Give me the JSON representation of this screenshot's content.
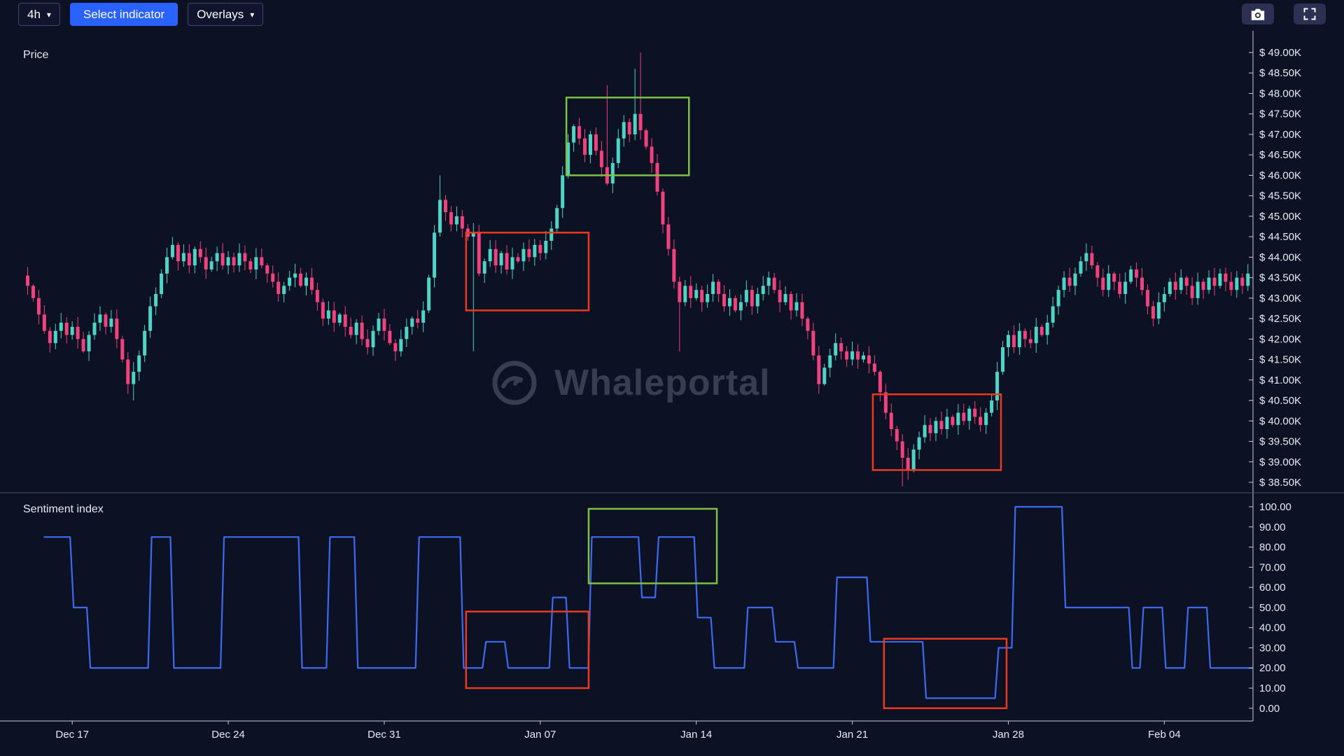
{
  "toolbar": {
    "timeframe_label": "4h",
    "select_indicator_label": "Select indicator",
    "overlays_label": "Overlays",
    "caret": "▾",
    "icons": [
      "camera-icon",
      "fullscreen-expand-icon"
    ]
  },
  "price_panel": {
    "title": "Price"
  },
  "sentiment_panel": {
    "title": "Sentiment index"
  },
  "watermark": {
    "label": "Whaleportal"
  },
  "colors": {
    "background": "#0D1124",
    "accent_blue": "#2962FF",
    "axis_text": "#E9EBF2",
    "annotation": {
      "green": "#7DC242",
      "red": "#EA3B1F"
    }
  },
  "chart_data": [
    {
      "type": "candlestick",
      "title": "Price",
      "unit": "USD (thousands)",
      "x_labels": [
        "Dec 17",
        "Dec 24",
        "Dec 31",
        "Jan 07",
        "Jan 14",
        "Jan 21",
        "Jan 28",
        "Feb 04"
      ],
      "x_label_candle_indices": [
        8,
        36,
        64,
        92,
        120,
        148,
        176,
        204
      ],
      "y_ticks": [
        "$ 49.00K",
        "$ 48.50K",
        "$ 48.00K",
        "$ 47.50K",
        "$ 47.00K",
        "$ 46.50K",
        "$ 46.00K",
        "$ 45.50K",
        "$ 45.00K",
        "$ 44.50K",
        "$ 44.00K",
        "$ 43.50K",
        "$ 43.00K",
        "$ 42.50K",
        "$ 42.00K",
        "$ 41.50K",
        "$ 41.00K",
        "$ 40.50K",
        "$ 40.00K",
        "$ 39.50K",
        "$ 39.00K",
        "$ 38.50K"
      ],
      "y_top": 49.0,
      "y_step": 0.5,
      "colors": {
        "up": "#4ED3C6",
        "down": "#F0427C"
      },
      "closes": [
        43.3,
        43.0,
        42.6,
        42.2,
        41.9,
        42.2,
        42.4,
        42.1,
        42.3,
        42.0,
        41.7,
        42.1,
        42.4,
        42.6,
        42.3,
        42.5,
        42.0,
        41.5,
        40.9,
        41.2,
        41.6,
        42.2,
        42.8,
        43.1,
        43.6,
        44.0,
        44.3,
        43.9,
        44.1,
        43.8,
        44.2,
        44.0,
        43.7,
        43.9,
        44.1,
        43.8,
        44.0,
        43.8,
        44.1,
        43.9,
        43.7,
        44.0,
        43.8,
        43.6,
        43.4,
        43.1,
        43.3,
        43.5,
        43.6,
        43.3,
        43.5,
        43.2,
        42.9,
        42.5,
        42.7,
        42.4,
        42.6,
        42.3,
        42.1,
        42.4,
        42.0,
        41.8,
        42.2,
        42.5,
        42.2,
        41.9,
        41.7,
        42.0,
        42.3,
        42.5,
        42.4,
        42.7,
        43.5,
        44.6,
        45.4,
        45.1,
        44.8,
        45.0,
        44.7,
        44.5,
        44.6,
        43.6,
        43.9,
        44.2,
        43.8,
        44.1,
        43.7,
        44.0,
        43.9,
        44.2,
        44.0,
        44.3,
        44.1,
        44.4,
        44.7,
        45.2,
        46.0,
        46.8,
        47.2,
        46.9,
        46.5,
        47.0,
        46.6,
        46.2,
        45.8,
        46.3,
        46.9,
        47.3,
        47.0,
        47.5,
        47.1,
        46.7,
        46.3,
        45.6,
        44.8,
        44.2,
        43.4,
        42.9,
        43.3,
        43.0,
        43.2,
        42.9,
        43.1,
        43.4,
        43.1,
        42.8,
        43.0,
        42.7,
        42.9,
        43.2,
        42.8,
        43.1,
        43.3,
        43.5,
        43.2,
        42.9,
        43.1,
        42.7,
        42.9,
        42.5,
        42.2,
        41.6,
        40.9,
        41.3,
        41.6,
        41.9,
        41.7,
        41.5,
        41.7,
        41.5,
        41.6,
        41.4,
        41.2,
        40.7,
        40.2,
        39.8,
        39.5,
        39.1,
        38.8,
        39.3,
        39.6,
        39.9,
        39.7,
        40.0,
        39.8,
        40.1,
        39.9,
        40.2,
        40.0,
        40.3,
        40.1,
        39.9,
        40.2,
        40.5,
        41.2,
        41.8,
        42.1,
        41.8,
        42.2,
        42.0,
        41.9,
        42.3,
        42.1,
        42.4,
        42.8,
        43.2,
        43.5,
        43.3,
        43.6,
        43.9,
        44.1,
        43.8,
        43.5,
        43.2,
        43.6,
        43.4,
        43.1,
        43.4,
        43.7,
        43.5,
        43.2,
        42.8,
        42.5,
        42.9,
        43.1,
        43.4,
        43.2,
        43.5,
        43.3,
        43.0,
        43.4,
        43.2,
        43.5,
        43.3,
        43.6,
        43.4,
        43.2,
        43.5,
        43.3,
        43.6
      ],
      "wick_overrides": [
        {
          "i": 19,
          "low": 40.5
        },
        {
          "i": 74,
          "high": 46.0
        },
        {
          "i": 80,
          "low": 41.7
        },
        {
          "i": 104,
          "high": 48.2
        },
        {
          "i": 109,
          "high": 48.6
        },
        {
          "i": 110,
          "high": 49.0
        },
        {
          "i": 117,
          "low": 41.7
        },
        {
          "i": 157,
          "low": 38.4
        }
      ],
      "annotations": [
        {
          "shape": "rect",
          "color": "green",
          "i0": 97,
          "i1": 119,
          "price_low": 46.0,
          "price_high": 47.9
        },
        {
          "shape": "rect",
          "color": "red",
          "i0": 79,
          "i1": 101,
          "price_low": 42.7,
          "price_high": 44.6
        },
        {
          "shape": "rect",
          "color": "red",
          "i0": 152,
          "i1": 175,
          "price_low": 38.8,
          "price_high": 40.65
        }
      ]
    },
    {
      "type": "line",
      "style": "step",
      "title": "Sentiment index",
      "color": "#3D6BF0",
      "y_ticks": [
        "100.00",
        "90.00",
        "80.00",
        "70.00",
        "60.00",
        "50.00",
        "40.00",
        "30.00",
        "20.00",
        "10.00",
        "0.00"
      ],
      "y_range": [
        0,
        100
      ],
      "end_index": 220,
      "steps": [
        [
          3,
          85
        ],
        [
          8,
          50
        ],
        [
          11,
          20
        ],
        [
          22,
          85
        ],
        [
          26,
          20
        ],
        [
          35,
          85
        ],
        [
          49,
          20
        ],
        [
          54,
          85
        ],
        [
          59,
          20
        ],
        [
          70,
          85
        ],
        [
          78,
          20
        ],
        [
          82,
          33
        ],
        [
          86,
          20
        ],
        [
          94,
          55
        ],
        [
          97,
          20
        ],
        [
          101,
          85
        ],
        [
          110,
          55
        ],
        [
          113,
          85
        ],
        [
          120,
          45
        ],
        [
          123,
          20
        ],
        [
          129,
          50
        ],
        [
          134,
          33
        ],
        [
          138,
          20
        ],
        [
          145,
          65
        ],
        [
          151,
          33
        ],
        [
          161,
          5
        ],
        [
          174,
          30
        ],
        [
          177,
          100
        ],
        [
          186,
          50
        ],
        [
          198,
          20
        ],
        [
          200,
          50
        ],
        [
          204,
          20
        ],
        [
          208,
          50
        ],
        [
          212,
          20
        ]
      ],
      "annotations": [
        {
          "shape": "rect",
          "color": "green",
          "i0": 101,
          "i1": 124,
          "v_low": 62,
          "v_high": 99
        },
        {
          "shape": "rect",
          "color": "red",
          "i0": 79,
          "i1": 101,
          "v_low": 10,
          "v_high": 48
        },
        {
          "shape": "rect",
          "color": "red",
          "i0": 154,
          "i1": 176,
          "v_low": 0,
          "v_high": 34.5
        }
      ]
    }
  ]
}
